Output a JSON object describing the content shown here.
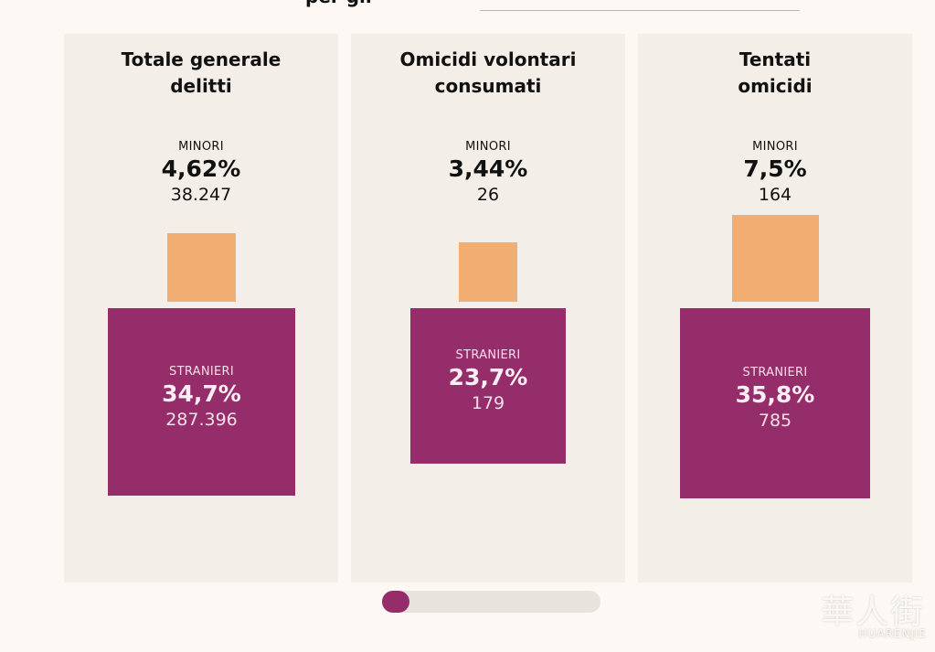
{
  "header": {
    "fragment": "per gli",
    "underline": ""
  },
  "cards": [
    {
      "title_line1": "Totale generale",
      "title_line2": "delitti",
      "minori": {
        "label": "MINORI",
        "percent": "4,62%",
        "count": "38.247"
      },
      "stranieri": {
        "label": "STRANIERI",
        "percent": "34,7%",
        "count": "287.396"
      }
    },
    {
      "title_line1": "Omicidi volontari",
      "title_line2": "consumati",
      "minori": {
        "label": "MINORI",
        "percent": "3,44%",
        "count": "26"
      },
      "stranieri": {
        "label": "STRANIERI",
        "percent": "23,7%",
        "count": "179"
      }
    },
    {
      "title_line1": "Tentati",
      "title_line2": "omicidi",
      "minori": {
        "label": "MINORI",
        "percent": "7,5%",
        "count": "164"
      },
      "stranieri": {
        "label": "STRANIERI",
        "percent": "35,8%",
        "count": "785"
      }
    }
  ],
  "colors": {
    "minori": "#f2ae72",
    "stranieri": "#952d6a",
    "card_bg": "#f4eee8",
    "scroll_thumb": "#952d6a"
  },
  "watermark": {
    "cjk": "華人街",
    "latin": "HUARENJIE"
  }
}
